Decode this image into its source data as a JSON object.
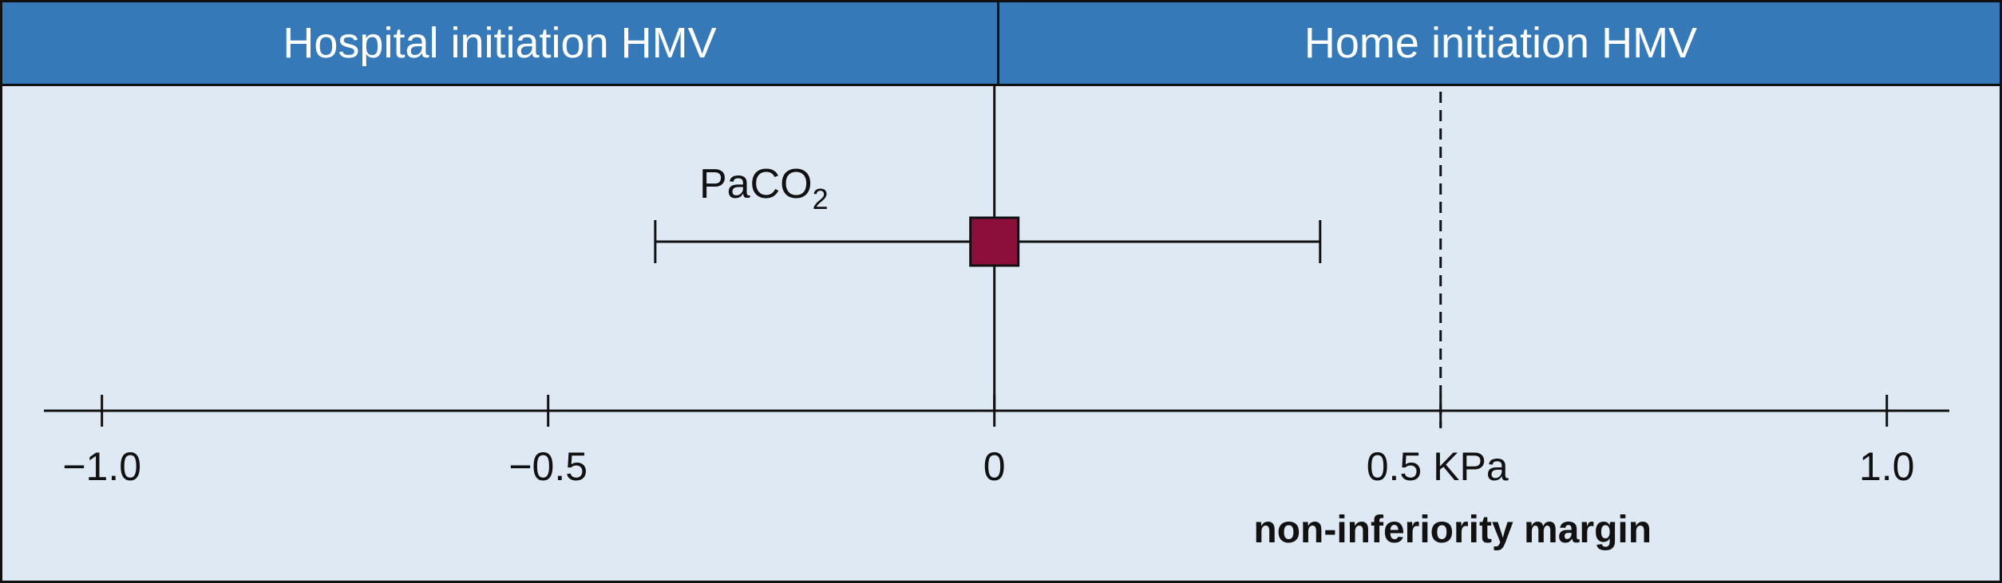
{
  "chart_data": {
    "type": "forest",
    "header": {
      "left": "Hospital initiation HMV",
      "right": "Home initiation HMV"
    },
    "x_ticks": [
      {
        "value": -1.0,
        "label": "−1.0"
      },
      {
        "value": -0.5,
        "label": "−0.5"
      },
      {
        "value": 0,
        "label": "0"
      },
      {
        "value": 0.5,
        "label": "0.5 KPa"
      },
      {
        "value": 1.0,
        "label": "1.0"
      }
    ],
    "xlim": [
      -1.065,
      1.07
    ],
    "series": [
      {
        "name": "PaCO",
        "name_subscript": "2",
        "estimate": 0.0,
        "ci_low": -0.38,
        "ci_high": 0.365
      }
    ],
    "reference_line": {
      "value": 0
    },
    "margin_line": {
      "value": 0.5,
      "label": "non-inferiority margin"
    },
    "colors": {
      "header": "#3579b8",
      "background": "#dfe9f4",
      "marker": "#8b0f3a"
    }
  }
}
